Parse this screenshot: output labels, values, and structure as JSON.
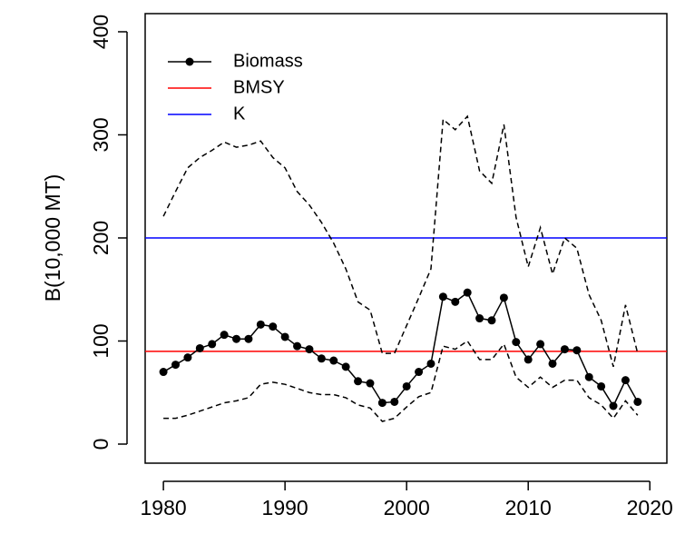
{
  "chart_data": {
    "type": "line",
    "ylabel": "B(10,000 MT)",
    "x": [
      1980,
      1981,
      1982,
      1983,
      1984,
      1985,
      1986,
      1987,
      1988,
      1989,
      1990,
      1991,
      1992,
      1993,
      1994,
      1995,
      1996,
      1997,
      1998,
      1999,
      2000,
      2001,
      2002,
      2003,
      2004,
      2005,
      2006,
      2007,
      2008,
      2009,
      2010,
      2011,
      2012,
      2013,
      2014,
      2015,
      2016,
      2017,
      2018,
      2019
    ],
    "series": [
      {
        "name": "Biomass",
        "color": "#000000",
        "values": [
          70,
          77,
          84,
          93,
          97,
          106,
          102,
          102,
          116,
          114,
          104,
          95,
          92,
          83,
          81,
          75,
          61,
          59,
          40,
          41,
          56,
          70,
          78,
          143,
          138,
          147,
          122,
          120,
          142,
          99,
          82,
          97,
          78,
          92,
          91,
          65,
          56,
          37,
          62,
          41
        ]
      }
    ],
    "interval": {
      "color": "#000000",
      "upper": [
        221,
        245,
        268,
        278,
        285,
        293,
        288,
        290,
        294,
        278,
        268,
        245,
        232,
        215,
        195,
        170,
        138,
        130,
        88,
        88,
        115,
        142,
        170,
        315,
        305,
        318,
        265,
        253,
        310,
        220,
        172,
        210,
        165,
        200,
        190,
        145,
        120,
        75,
        135,
        88
      ],
      "lower": [
        25,
        25,
        28,
        32,
        36,
        40,
        42,
        45,
        58,
        60,
        58,
        54,
        50,
        48,
        48,
        45,
        38,
        35,
        22,
        25,
        36,
        46,
        50,
        95,
        92,
        100,
        82,
        82,
        97,
        65,
        55,
        65,
        55,
        62,
        62,
        45,
        38,
        25,
        42,
        28
      ]
    },
    "hlines": [
      {
        "name": "BMSY",
        "value": 90,
        "color": "#ff0000"
      },
      {
        "name": "K",
        "value": 200,
        "color": "#0000ff"
      }
    ],
    "xlim": [
      1978.5,
      2021.4
    ],
    "xticks": [
      1980,
      1990,
      2000,
      2010,
      2020
    ],
    "ylim": [
      -18.5,
      417.6
    ],
    "yticks": [
      0,
      100,
      200,
      300,
      400
    ],
    "legend": "top-left"
  }
}
